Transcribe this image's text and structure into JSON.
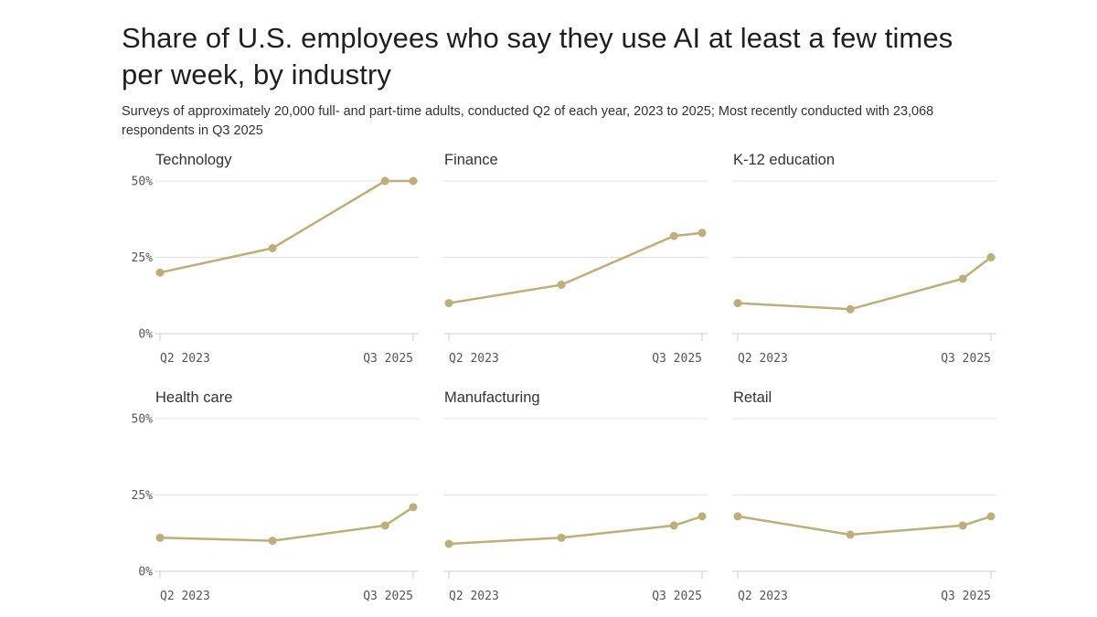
{
  "chart_data": {
    "type": "line",
    "title": "Share of U.S. employees who say they use AI at least a few times per week, by industry",
    "subtitle": "Surveys of approximately 20,000 full- and part-time adults, conducted Q2 of each year, 2023 to 2025; Most recently conducted with 23,068 respondents in Q3 2025",
    "x": [
      0,
      1,
      2,
      2.25
    ],
    "x_range": [
      0,
      2.25
    ],
    "x_tick_labels": {
      "start": "Q2 2023",
      "end": "Q3 2025"
    },
    "ylim": [
      0,
      50
    ],
    "y_ticks": [
      0,
      25,
      50
    ],
    "y_tick_labels": [
      "0%",
      "25%",
      "50%"
    ],
    "line_color": "#bfae77",
    "panels": [
      {
        "name": "Technology",
        "values": [
          20,
          28,
          50,
          50
        ]
      },
      {
        "name": "Finance",
        "values": [
          10,
          16,
          32,
          33
        ]
      },
      {
        "name": "K-12 education",
        "values": [
          10,
          8,
          18,
          25
        ]
      },
      {
        "name": "Health care",
        "values": [
          11,
          10,
          15,
          21
        ]
      },
      {
        "name": "Manufacturing",
        "values": [
          9,
          11,
          15,
          18
        ]
      },
      {
        "name": "Retail",
        "values": [
          18,
          12,
          15,
          18
        ]
      }
    ]
  }
}
